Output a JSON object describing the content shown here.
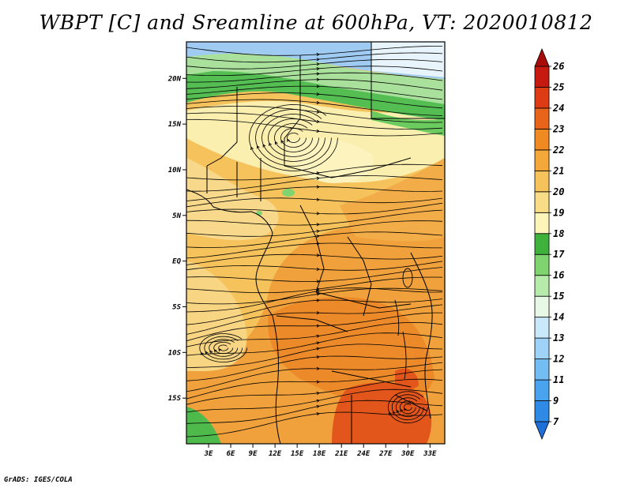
{
  "title": "WBPT [C] and Sreamline at 600hPa, VT: 2020010812",
  "footer": "GrADS: IGES/COLA",
  "map": {
    "lon_range": [
      0,
      35
    ],
    "lat_range": [
      -20,
      24
    ],
    "x_ticks": [
      {
        "value": 3,
        "label": "3E"
      },
      {
        "value": 6,
        "label": "6E"
      },
      {
        "value": 9,
        "label": "9E"
      },
      {
        "value": 12,
        "label": "12E"
      },
      {
        "value": 15,
        "label": "15E"
      },
      {
        "value": 18,
        "label": "18E"
      },
      {
        "value": 21,
        "label": "21E"
      },
      {
        "value": 24,
        "label": "24E"
      },
      {
        "value": 27,
        "label": "27E"
      },
      {
        "value": 30,
        "label": "30E"
      },
      {
        "value": 33,
        "label": "33E"
      }
    ],
    "y_ticks": [
      {
        "value": 20,
        "label": "20N"
      },
      {
        "value": 15,
        "label": "15N"
      },
      {
        "value": 10,
        "label": "10N"
      },
      {
        "value": 5,
        "label": "5N"
      },
      {
        "value": 0,
        "label": "EQ"
      },
      {
        "value": -5,
        "label": "5S"
      },
      {
        "value": -10,
        "label": "10S"
      },
      {
        "value": -15,
        "label": "15S"
      }
    ],
    "field_colors": {
      "cold": "#9fcbf2",
      "cool": "#b4e0a6",
      "green_dark": "#49b84a",
      "green_mid": "#7cd56c",
      "pale": "#fbefa8",
      "yellow": "#f6d37c",
      "light_orange": "#f4b85c",
      "orange": "#ef9b36",
      "dark_orange": "#e8741e",
      "red_orange": "#e1501a"
    }
  },
  "colorbar": {
    "levels": [
      "7",
      "9",
      "11",
      "12",
      "13",
      "14",
      "15",
      "16",
      "17",
      "18",
      "19",
      "20",
      "21",
      "22",
      "23",
      "24",
      "25",
      "26"
    ],
    "colors": [
      "#1e6fd9",
      "#2f8ae6",
      "#4aa3ef",
      "#74bdf4",
      "#9fd2f7",
      "#c9e8fa",
      "#e8f8e6",
      "#b6ebab",
      "#7fd46f",
      "#3fb23b",
      "#fdf4b9",
      "#f9dd86",
      "#f6c25c",
      "#f4a83a",
      "#ef8a23",
      "#e8641a",
      "#de3a14",
      "#c61a10",
      "#a80c0a"
    ]
  }
}
